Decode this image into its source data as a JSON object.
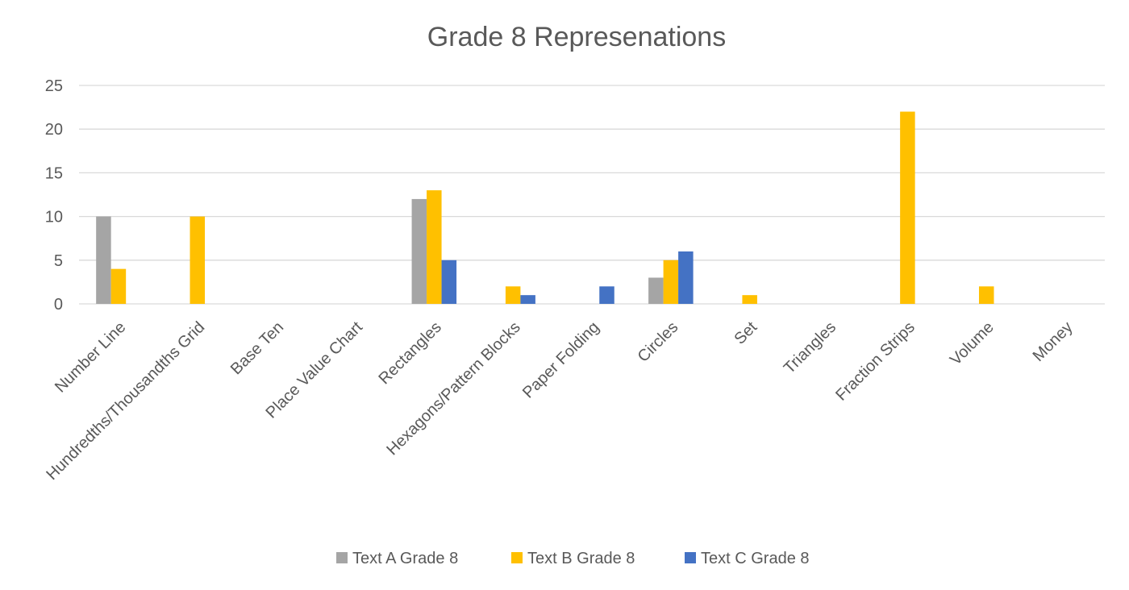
{
  "chart_data": {
    "type": "bar",
    "title": "Grade 8 Represenations",
    "xlabel": "",
    "ylabel": "",
    "ylim": [
      0,
      25
    ],
    "yticks": [
      0,
      5,
      10,
      15,
      20,
      25
    ],
    "grid": true,
    "legend_position": "bottom",
    "categories": [
      "Number Line",
      "Hundredths/Thousandths Grid",
      "Base Ten",
      "Place Value Chart",
      "Rectangles",
      "Hexagons/Pattern Blocks",
      "Paper Folding",
      "Circles",
      "Set",
      "Triangles",
      "Fraction Strips",
      "Volume",
      "Money"
    ],
    "series": [
      {
        "name": "Text A Grade 8",
        "color": "#a5a5a5",
        "values": [
          10,
          0,
          0,
          0,
          12,
          0,
          0,
          3,
          0,
          0,
          0,
          0,
          0
        ]
      },
      {
        "name": "Text B Grade 8",
        "color": "#ffc000",
        "values": [
          4,
          10,
          0,
          0,
          13,
          2,
          0,
          5,
          1,
          0,
          22,
          2,
          0
        ]
      },
      {
        "name": "Text C Grade 8",
        "color": "#4472c4",
        "values": [
          0,
          0,
          0,
          0,
          5,
          1,
          2,
          6,
          0,
          0,
          0,
          0,
          0
        ]
      }
    ]
  }
}
